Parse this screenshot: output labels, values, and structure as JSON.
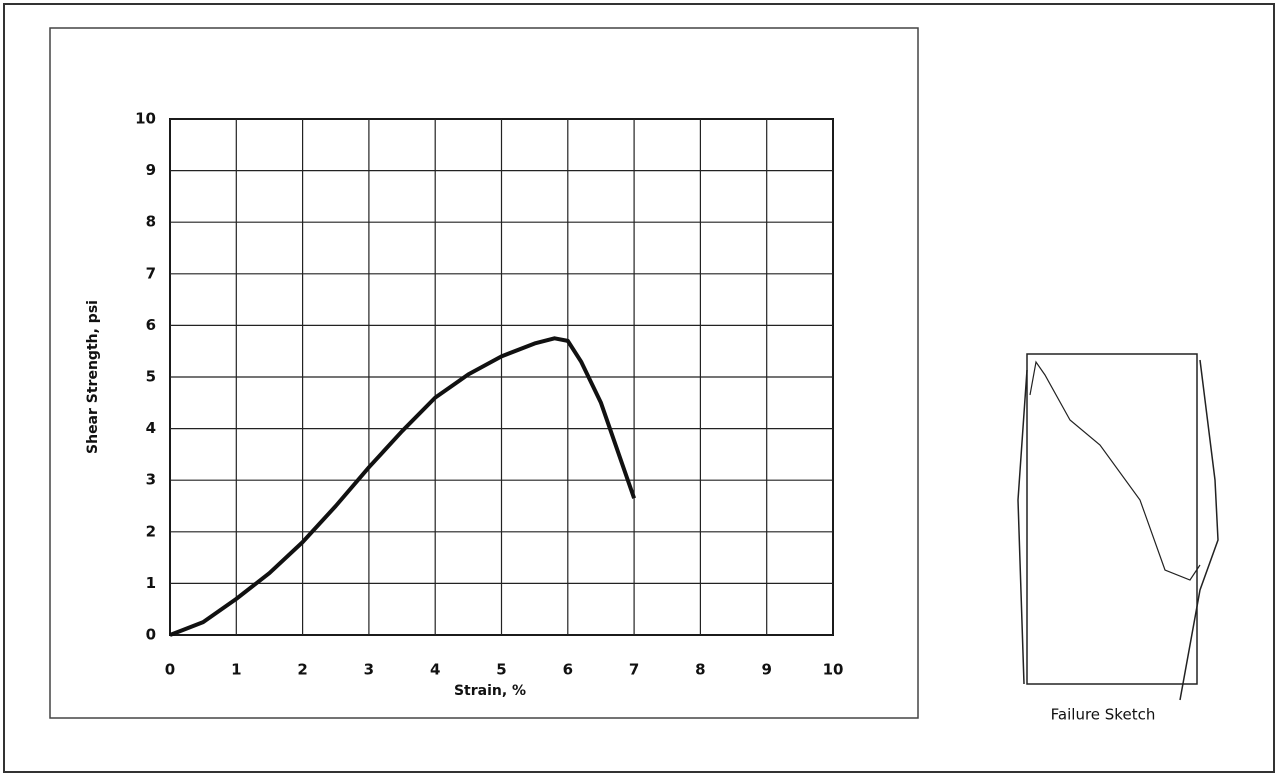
{
  "chart_data": {
    "type": "line",
    "xlabel": "Strain, %",
    "ylabel": "Shear Strength, psi",
    "annotation": "Failure Sketch",
    "x": [
      0,
      0.2,
      0.5,
      1,
      1.5,
      2,
      2.5,
      3,
      3.5,
      4,
      4.5,
      5,
      5.5,
      5.8,
      6,
      6.2,
      6.5,
      7
    ],
    "series": [
      {
        "color": "#111111",
        "values": [
          0,
          0.1,
          0.25,
          0.7,
          1.2,
          1.8,
          2.5,
          3.25,
          3.95,
          4.6,
          5.05,
          5.4,
          5.65,
          5.75,
          5.7,
          5.3,
          4.5,
          2.65
        ]
      }
    ],
    "xlim": [
      0,
      10
    ],
    "ylim": [
      0,
      10
    ],
    "xticks": [
      0,
      1,
      2,
      3,
      4,
      5,
      6,
      7,
      8,
      9,
      10
    ],
    "yticks": [
      0,
      1,
      2,
      3,
      4,
      5,
      6,
      7,
      8,
      9,
      10
    ],
    "grid": true
  }
}
